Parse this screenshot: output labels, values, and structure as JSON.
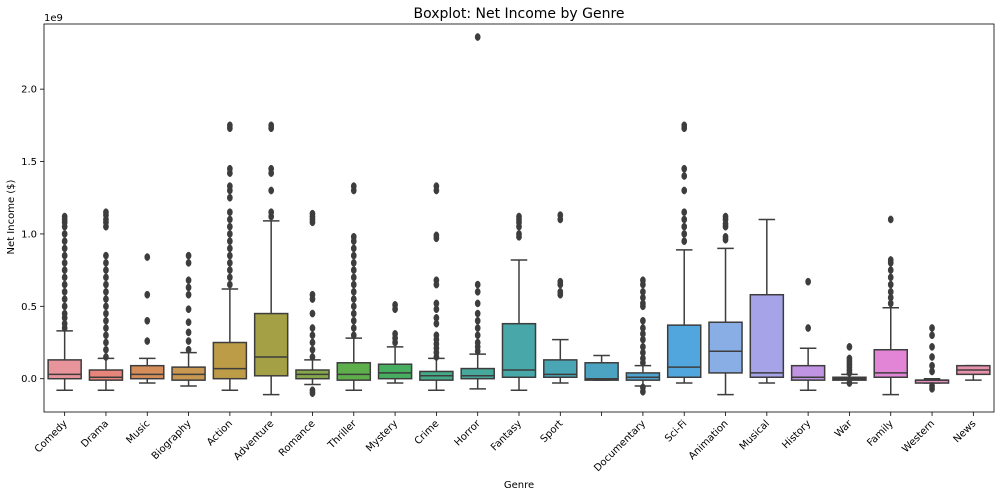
{
  "chart_data": {
    "type": "boxplot",
    "title": "Boxplot: Net Income by Genre",
    "xlabel": "Genre",
    "ylabel": "Net Income ($)",
    "y_exponent_label": "1e9",
    "ylim": [
      -0.23,
      2.45
    ],
    "yticks": [
      0.0,
      0.5,
      1.0,
      1.5,
      2.0
    ],
    "ytick_labels": [
      "0.0",
      "0.5",
      "1.0",
      "1.5",
      "2.0"
    ],
    "grid": false,
    "categories": [
      "Comedy",
      "Drama",
      "Music",
      "Biography",
      "Action",
      "Adventure",
      "Romance",
      "Thriller",
      "Mystery",
      "Crime",
      "Horror",
      "Fantasy",
      "Sport",
      "",
      "Documentary",
      "Sci-Fi",
      "Animation",
      "Musical",
      "History",
      "War",
      "Family",
      "Western",
      "News"
    ],
    "boxes": [
      {
        "color": "#e8949b",
        "whisker_low": -0.08,
        "q1": 0.0,
        "median": 0.03,
        "q3": 0.13,
        "whisker_high": 0.33,
        "outliers": [
          0.35,
          0.38,
          0.42,
          0.45,
          0.5,
          0.55,
          0.6,
          0.65,
          0.7,
          0.75,
          0.8,
          0.85,
          0.9,
          0.95,
          1.0,
          1.05,
          1.08,
          1.1,
          1.12
        ]
      },
      {
        "color": "#e7857a",
        "whisker_low": -0.08,
        "q1": -0.01,
        "median": 0.01,
        "q3": 0.06,
        "whisker_high": 0.14,
        "outliers": [
          0.15,
          0.2,
          0.25,
          0.3,
          0.35,
          0.4,
          0.45,
          0.5,
          0.55,
          0.6,
          0.65,
          0.7,
          0.75,
          0.8,
          0.85,
          1.05,
          1.08,
          1.1,
          1.13,
          1.15
        ]
      },
      {
        "color": "#d58e59",
        "whisker_low": -0.03,
        "q1": 0.0,
        "median": 0.03,
        "q3": 0.09,
        "whisker_high": 0.14,
        "outliers": [
          0.26,
          0.4,
          0.58,
          0.84
        ]
      },
      {
        "color": "#c89752",
        "whisker_low": -0.05,
        "q1": -0.01,
        "median": 0.03,
        "q3": 0.08,
        "whisker_high": 0.18,
        "outliers": [
          0.2,
          0.26,
          0.32,
          0.39,
          0.48,
          0.58,
          0.63,
          0.68,
          0.8,
          0.85
        ]
      },
      {
        "color": "#bc9c47",
        "whisker_low": -0.08,
        "q1": 0.0,
        "median": 0.07,
        "q3": 0.25,
        "whisker_high": 0.62,
        "outliers": [
          0.65,
          0.7,
          0.75,
          0.8,
          0.85,
          0.9,
          0.95,
          1.0,
          1.05,
          1.1,
          1.15,
          1.25,
          1.3,
          1.33,
          1.42,
          1.45,
          1.73,
          1.75
        ]
      },
      {
        "color": "#a4a045",
        "whisker_low": -0.11,
        "q1": 0.02,
        "median": 0.15,
        "q3": 0.45,
        "whisker_high": 1.09,
        "outliers": [
          1.12,
          1.15,
          1.3,
          1.42,
          1.45,
          1.73,
          1.75
        ]
      },
      {
        "color": "#86a84a",
        "whisker_low": -0.04,
        "q1": 0.0,
        "median": 0.03,
        "q3": 0.06,
        "whisker_high": 0.13,
        "outliers": [
          -0.08,
          -0.1,
          0.15,
          0.2,
          0.25,
          0.3,
          0.35,
          0.45,
          0.55,
          0.58,
          1.08,
          1.1,
          1.12,
          1.14
        ]
      },
      {
        "color": "#5fae4c",
        "whisker_low": -0.08,
        "q1": -0.01,
        "median": 0.03,
        "q3": 0.11,
        "whisker_high": 0.28,
        "outliers": [
          0.3,
          0.35,
          0.4,
          0.45,
          0.5,
          0.55,
          0.6,
          0.65,
          0.7,
          0.75,
          0.8,
          0.85,
          0.9,
          0.95,
          0.98,
          1.3,
          1.33
        ]
      },
      {
        "color": "#47ad60",
        "whisker_low": -0.03,
        "q1": 0.0,
        "median": 0.04,
        "q3": 0.1,
        "whisker_high": 0.22,
        "outliers": [
          0.25,
          0.28,
          0.31,
          0.48,
          0.51
        ]
      },
      {
        "color": "#45aa89",
        "whisker_low": -0.08,
        "q1": -0.01,
        "median": 0.02,
        "q3": 0.05,
        "whisker_high": 0.14,
        "outliers": [
          0.15,
          0.18,
          0.21,
          0.24,
          0.27,
          0.3,
          0.38,
          0.42,
          0.48,
          0.52,
          0.65,
          0.68,
          0.97,
          0.99,
          1.3,
          1.33
        ]
      },
      {
        "color": "#47a89c",
        "whisker_low": -0.07,
        "q1": 0.0,
        "median": 0.02,
        "q3": 0.07,
        "whisker_high": 0.17,
        "outliers": [
          0.19,
          0.22,
          0.25,
          0.3,
          0.35,
          0.4,
          0.45,
          0.52,
          0.6,
          0.65,
          2.36
        ]
      },
      {
        "color": "#48a7a8",
        "whisker_low": -0.08,
        "q1": 0.01,
        "median": 0.06,
        "q3": 0.38,
        "whisker_high": 0.82,
        "outliers": [
          0.98,
          1.0,
          1.05,
          1.08,
          1.1,
          1.12
        ]
      },
      {
        "color": "#4aa5b5",
        "whisker_low": -0.03,
        "q1": 0.01,
        "median": 0.03,
        "q3": 0.13,
        "whisker_high": 0.27,
        "outliers": [
          0.58,
          0.6,
          0.65,
          0.67,
          1.1,
          1.13
        ]
      },
      {
        "color": "#4ba3c1",
        "whisker_low": -0.01,
        "q1": -0.01,
        "median": 0.0,
        "q3": 0.11,
        "whisker_high": 0.16,
        "outliers": []
      },
      {
        "color": "#4ea2cf",
        "whisker_low": -0.05,
        "q1": -0.01,
        "median": 0.01,
        "q3": 0.04,
        "whisker_high": 0.09,
        "outliers": [
          -0.06,
          -0.09,
          0.11,
          0.14,
          0.18,
          0.22,
          0.27,
          0.31,
          0.35,
          0.4,
          0.5,
          0.52,
          0.56,
          0.6,
          0.65,
          0.68
        ]
      },
      {
        "color": "#52a6de",
        "whisker_low": -0.03,
        "q1": 0.01,
        "median": 0.08,
        "q3": 0.37,
        "whisker_high": 0.89,
        "outliers": [
          0.95,
          1.0,
          1.05,
          1.1,
          1.15,
          1.3,
          1.4,
          1.45,
          1.73,
          1.75
        ]
      },
      {
        "color": "#89aee6",
        "whisker_low": -0.11,
        "q1": 0.04,
        "median": 0.19,
        "q3": 0.39,
        "whisker_high": 0.9,
        "outliers": [
          0.96,
          0.98,
          1.05,
          1.07,
          1.1,
          1.12
        ]
      },
      {
        "color": "#a7a3e8",
        "whisker_low": -0.03,
        "q1": 0.01,
        "median": 0.04,
        "q3": 0.58,
        "whisker_high": 1.1,
        "outliers": []
      },
      {
        "color": "#c193e3",
        "whisker_low": -0.08,
        "q1": -0.01,
        "median": 0.01,
        "q3": 0.09,
        "whisker_high": 0.21,
        "outliers": [
          0.35,
          0.67
        ]
      },
      {
        "color": "#d58ee2",
        "whisker_low": -0.03,
        "q1": -0.01,
        "median": 0.0,
        "q3": 0.01,
        "whisker_high": 0.03,
        "outliers": [
          0.04,
          0.06,
          0.08,
          0.1,
          0.12,
          0.14,
          0.22,
          -0.03
        ]
      },
      {
        "color": "#e285d6",
        "whisker_low": -0.11,
        "q1": 0.01,
        "median": 0.04,
        "q3": 0.2,
        "whisker_high": 0.49,
        "outliers": [
          0.52,
          0.56,
          0.6,
          0.65,
          0.7,
          0.75,
          0.8,
          0.82,
          1.1
        ]
      },
      {
        "color": "#e78cbf",
        "whisker_low": -0.03,
        "q1": -0.03,
        "median": -0.01,
        "q3": -0.01,
        "whisker_high": 0.0,
        "outliers": [
          -0.07,
          -0.05,
          0.05,
          0.09,
          0.15,
          0.22,
          0.3,
          0.35
        ]
      },
      {
        "color": "#e891ac",
        "whisker_low": -0.01,
        "q1": 0.03,
        "median": 0.06,
        "q3": 0.09,
        "whisker_high": 0.09,
        "outliers": []
      }
    ]
  }
}
